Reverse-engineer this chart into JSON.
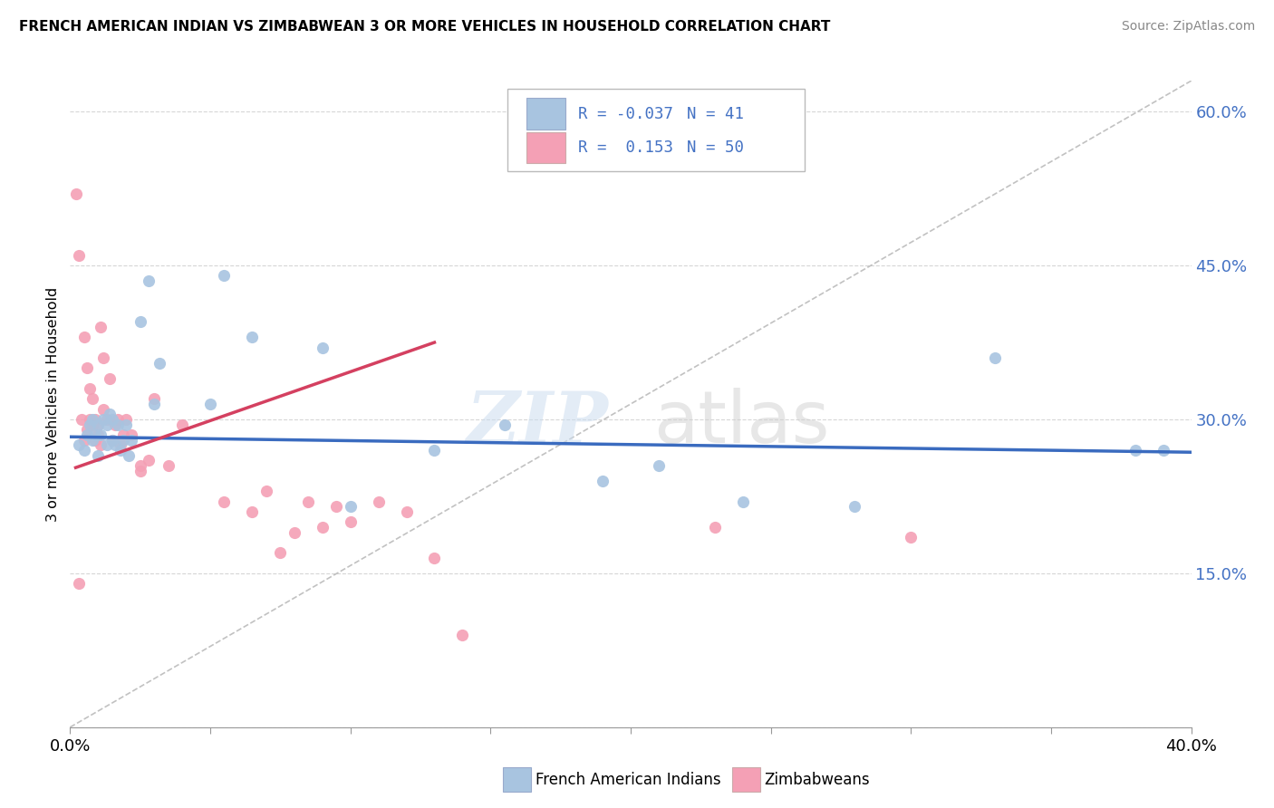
{
  "title": "FRENCH AMERICAN INDIAN VS ZIMBABWEAN 3 OR MORE VEHICLES IN HOUSEHOLD CORRELATION CHART",
  "source": "Source: ZipAtlas.com",
  "ylabel": "3 or more Vehicles in Household",
  "legend_label1": "French American Indians",
  "legend_label2": "Zimbabweans",
  "R1": -0.037,
  "N1": 41,
  "R2": 0.153,
  "N2": 50,
  "color_blue": "#a8c4e0",
  "color_pink": "#f4a0b5",
  "line_blue": "#3a6bbf",
  "line_pink": "#d44060",
  "ref_line_color": "#bbbbbb",
  "x_range": [
    0.0,
    0.4
  ],
  "y_range": [
    0.0,
    0.63
  ],
  "y_ticks": [
    0.0,
    0.15,
    0.3,
    0.45,
    0.6
  ],
  "y_tick_labels": [
    "",
    "15.0%",
    "30.0%",
    "45.0%",
    "60.0%"
  ],
  "blue_x": [
    0.003,
    0.005,
    0.006,
    0.007,
    0.008,
    0.008,
    0.009,
    0.01,
    0.01,
    0.011,
    0.012,
    0.013,
    0.013,
    0.014,
    0.015,
    0.015,
    0.016,
    0.017,
    0.018,
    0.019,
    0.02,
    0.021,
    0.022,
    0.025,
    0.028,
    0.03,
    0.032,
    0.05,
    0.055,
    0.065,
    0.09,
    0.1,
    0.13,
    0.155,
    0.19,
    0.21,
    0.24,
    0.28,
    0.33,
    0.38,
    0.39
  ],
  "blue_y": [
    0.275,
    0.27,
    0.285,
    0.295,
    0.28,
    0.3,
    0.285,
    0.295,
    0.265,
    0.285,
    0.3,
    0.275,
    0.295,
    0.305,
    0.28,
    0.3,
    0.275,
    0.295,
    0.27,
    0.28,
    0.295,
    0.265,
    0.28,
    0.395,
    0.435,
    0.315,
    0.355,
    0.315,
    0.44,
    0.38,
    0.37,
    0.215,
    0.27,
    0.295,
    0.24,
    0.255,
    0.22,
    0.215,
    0.36,
    0.27,
    0.27
  ],
  "pink_x": [
    0.002,
    0.003,
    0.003,
    0.004,
    0.005,
    0.005,
    0.006,
    0.006,
    0.007,
    0.007,
    0.008,
    0.008,
    0.009,
    0.009,
    0.01,
    0.01,
    0.011,
    0.011,
    0.012,
    0.012,
    0.013,
    0.014,
    0.015,
    0.016,
    0.017,
    0.018,
    0.019,
    0.02,
    0.022,
    0.025,
    0.025,
    0.028,
    0.03,
    0.035,
    0.04,
    0.055,
    0.065,
    0.07,
    0.075,
    0.08,
    0.085,
    0.09,
    0.095,
    0.1,
    0.11,
    0.12,
    0.13,
    0.14,
    0.23,
    0.3
  ],
  "pink_y": [
    0.52,
    0.14,
    0.46,
    0.3,
    0.28,
    0.38,
    0.29,
    0.35,
    0.3,
    0.33,
    0.295,
    0.32,
    0.28,
    0.3,
    0.285,
    0.295,
    0.275,
    0.39,
    0.31,
    0.36,
    0.3,
    0.34,
    0.28,
    0.295,
    0.3,
    0.275,
    0.285,
    0.3,
    0.285,
    0.255,
    0.25,
    0.26,
    0.32,
    0.255,
    0.295,
    0.22,
    0.21,
    0.23,
    0.17,
    0.19,
    0.22,
    0.195,
    0.215,
    0.2,
    0.22,
    0.21,
    0.165,
    0.09,
    0.195,
    0.185
  ],
  "blue_line_x": [
    0.0,
    0.4
  ],
  "blue_line_y": [
    0.283,
    0.268
  ],
  "pink_line_x": [
    0.002,
    0.13
  ],
  "pink_line_y": [
    0.253,
    0.375
  ],
  "diag_line": [
    [
      0.0,
      0.4
    ],
    [
      0.0,
      0.63
    ]
  ]
}
